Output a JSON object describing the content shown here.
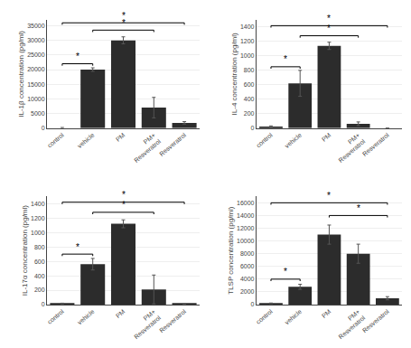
{
  "chart_data": [
    {
      "type": "bar",
      "ylabel": "IL-1β concentration (pg/ml)",
      "categories": [
        "control",
        "vehicle",
        "PM",
        "PM+\nResveratrol",
        "Resveratrol"
      ],
      "values": [
        0,
        20000,
        30000,
        7000,
        1800
      ],
      "errors": [
        200,
        600,
        1200,
        3500,
        400
      ],
      "color": "#2c2c2c",
      "ylim": [
        0,
        37000
      ],
      "yticks": [
        0,
        5000,
        10000,
        15000,
        20000,
        25000,
        30000,
        35000
      ],
      "grid": true,
      "significance": [
        {
          "x1": 0,
          "x2": 1,
          "y": 22000,
          "label": "*"
        },
        {
          "x1": 1,
          "x2": 3,
          "y": 33500,
          "label": "*"
        },
        {
          "x1": 0,
          "x2": 4,
          "y": 36000,
          "label": "*"
        }
      ]
    },
    {
      "type": "bar",
      "ylabel": "IL-4 concentration (pg/ml)",
      "categories": [
        "control",
        "vehicle",
        "PM",
        "PM+\nResveratrol",
        "Resveratrol"
      ],
      "values": [
        20,
        620,
        1140,
        60,
        0
      ],
      "errors": [
        10,
        180,
        50,
        25,
        0
      ],
      "color": "#2c2c2c",
      "ylim": [
        0,
        1500
      ],
      "yticks": [
        0,
        200,
        400,
        600,
        800,
        1000,
        1200,
        1400
      ],
      "grid": true,
      "significance": [
        {
          "x1": 0,
          "x2": 1,
          "y": 850,
          "label": "*"
        },
        {
          "x1": 1,
          "x2": 3,
          "y": 1280,
          "label": "*"
        },
        {
          "x1": 0,
          "x2": 4,
          "y": 1420,
          "label": "*"
        }
      ]
    },
    {
      "type": "bar",
      "ylabel": "IL-17α concentration (pg/ml)",
      "categories": [
        "control",
        "vehicle",
        "PM",
        "PM+\nResveratrol",
        "Resveratrol"
      ],
      "values": [
        15,
        560,
        1120,
        210,
        10
      ],
      "errors": [
        5,
        80,
        55,
        200,
        5
      ],
      "color": "#2c2c2c",
      "ylim": [
        0,
        1500
      ],
      "yticks": [
        0,
        200,
        400,
        600,
        800,
        1000,
        1200,
        1400
      ],
      "grid": true,
      "significance": [
        {
          "x1": 0,
          "x2": 1,
          "y": 700,
          "label": "*"
        },
        {
          "x1": 1,
          "x2": 3,
          "y": 1280,
          "label": "*"
        },
        {
          "x1": 0,
          "x2": 4,
          "y": 1420,
          "label": "*"
        }
      ]
    },
    {
      "type": "bar",
      "ylabel": "TLSP concentration (pg/ml)",
      "categories": [
        "control",
        "vehicle",
        "PM",
        "PM+\nResveratrol",
        "Resveratrol"
      ],
      "values": [
        200,
        2800,
        11000,
        8000,
        1000
      ],
      "errors": [
        50,
        400,
        1500,
        1500,
        250
      ],
      "color": "#2c2c2c",
      "ylim": [
        0,
        17000
      ],
      "yticks": [
        0,
        2000,
        4000,
        6000,
        8000,
        10000,
        12000,
        14000,
        16000
      ],
      "grid": true,
      "significance": [
        {
          "x1": 0,
          "x2": 1,
          "y": 4000,
          "label": "*"
        },
        {
          "x1": 2,
          "x2": 4,
          "y": 14000,
          "label": "*"
        },
        {
          "x1": 0,
          "x2": 4,
          "y": 16000,
          "label": "*"
        }
      ]
    }
  ]
}
